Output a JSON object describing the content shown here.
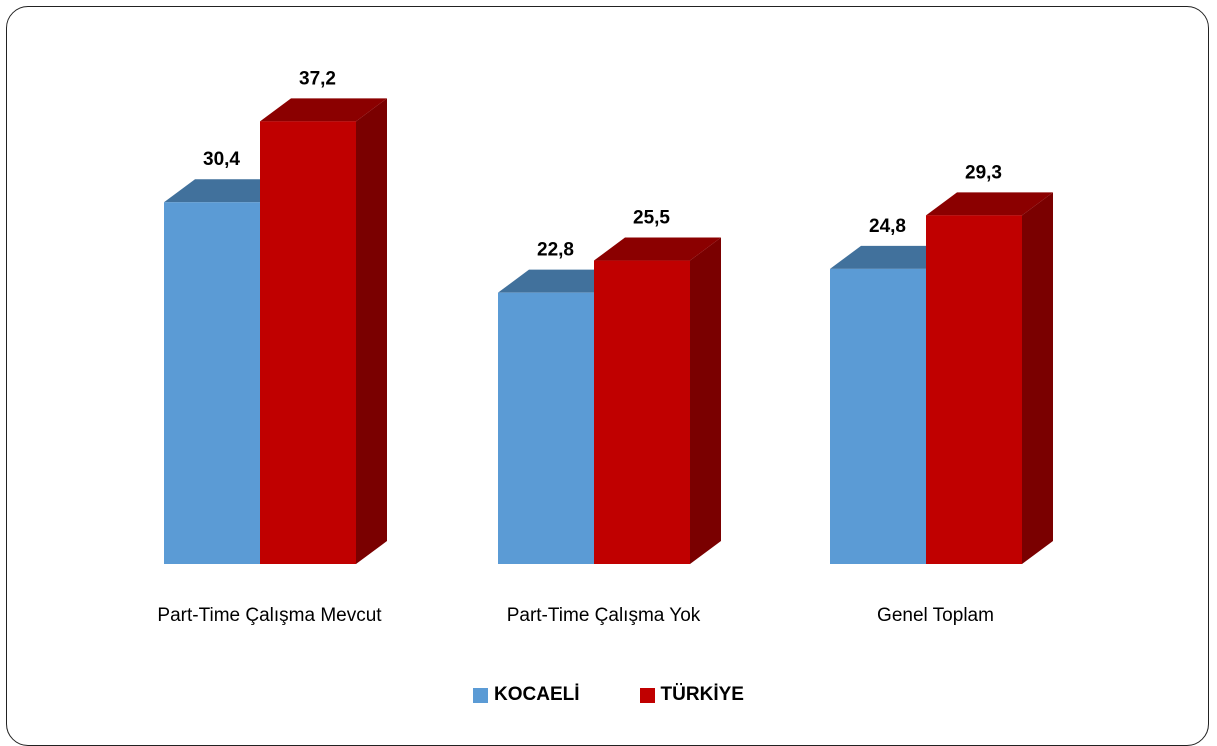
{
  "chart_data": {
    "type": "bar",
    "categories": [
      "Part-Time Çalışma Mevcut",
      "Part-Time Çalışma Yok",
      "Genel Toplam"
    ],
    "series": [
      {
        "name": "KOCAELİ",
        "values": [
          30.4,
          22.8,
          24.8
        ],
        "labels": [
          "30,4",
          "22,8",
          "24,8"
        ]
      },
      {
        "name": "TÜRKİYE",
        "values": [
          37.2,
          25.5,
          29.3
        ],
        "labels": [
          "37,2",
          "25,5",
          "29,3"
        ]
      }
    ],
    "colors": {
      "kocaeli_front": "#5b9bd5",
      "kocaeli_top": "#41719c",
      "kocaeli_side": "#2e5f8a",
      "turkiye_front": "#c00000",
      "turkiye_top": "#8b0000",
      "turkiye_side": "#7a0000"
    },
    "bar_style": "3d",
    "grid": false,
    "legend_position": "bottom"
  }
}
